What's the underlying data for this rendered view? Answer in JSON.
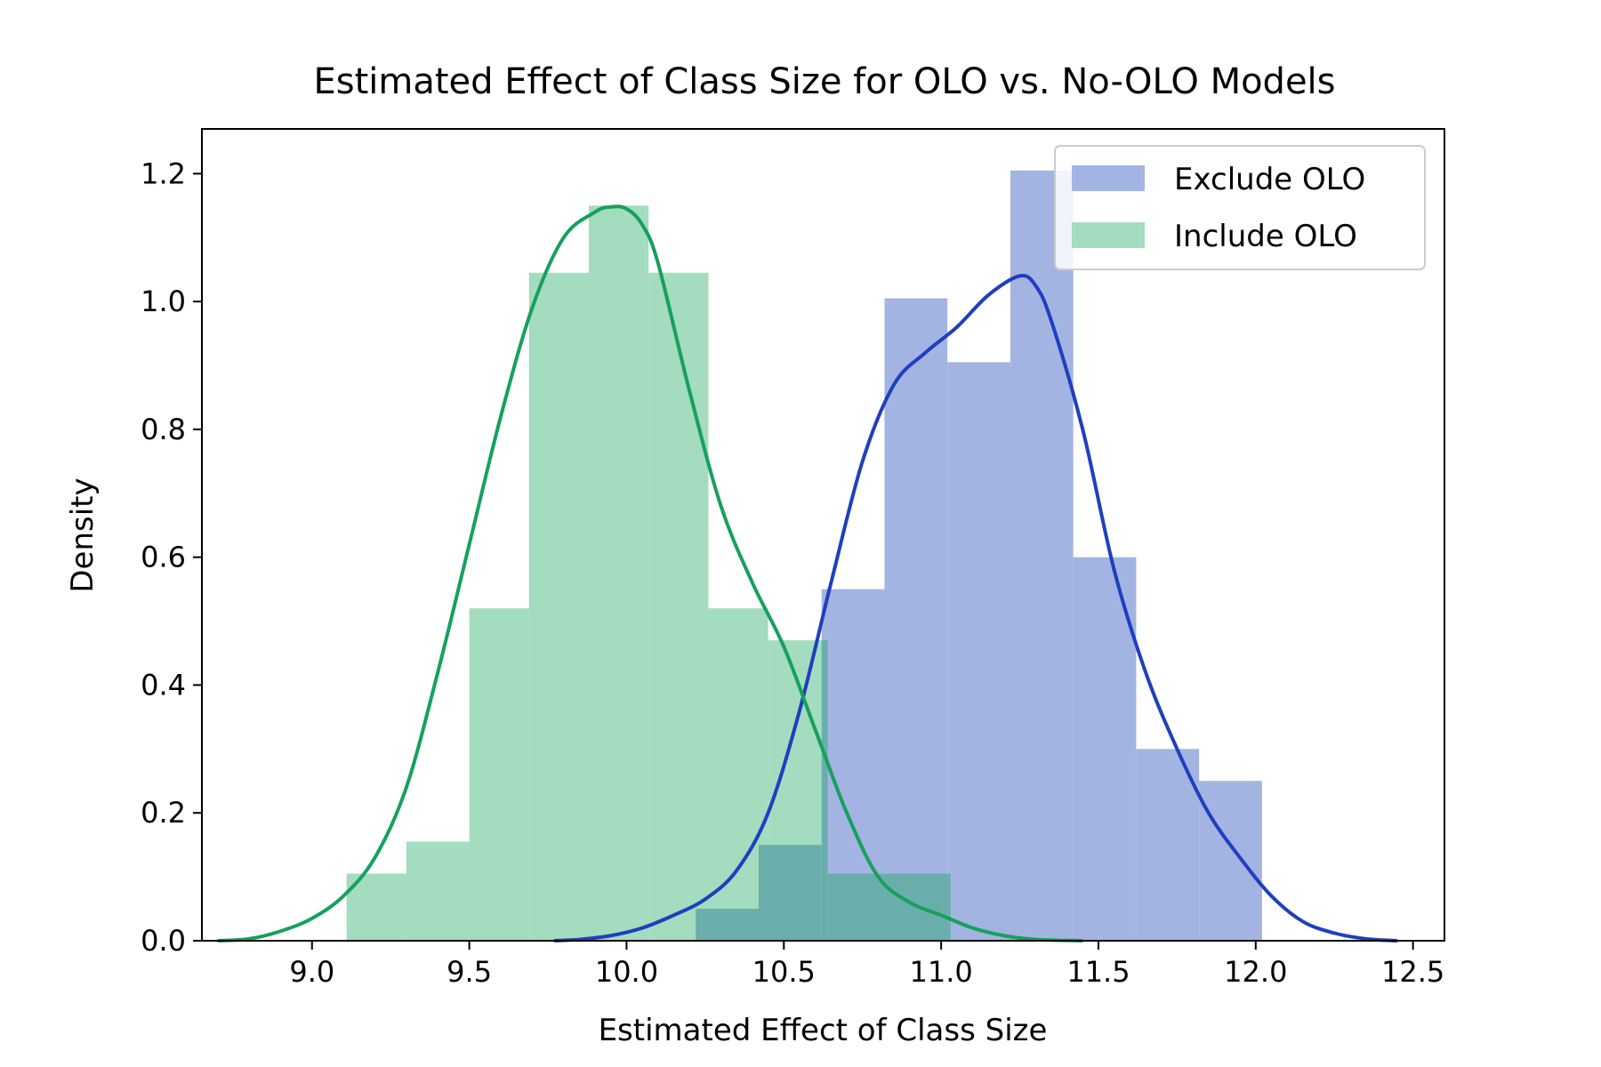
{
  "chart_data": {
    "type": "histogram with density curves",
    "title": "Estimated Effect of Class Size for OLO vs. No-OLO Models",
    "xlabel": "Estimated Effect of Class Size",
    "ylabel": "Density",
    "xlim": [
      8.65,
      12.6
    ],
    "ylim": [
      0,
      1.27
    ],
    "x_ticks": [
      9.0,
      9.5,
      10.0,
      10.5,
      11.0,
      11.5,
      12.0,
      12.5
    ],
    "x_tick_labels": [
      "9.0",
      "9.5",
      "10.0",
      "10.5",
      "11.0",
      "11.5",
      "12.0",
      "12.5"
    ],
    "y_ticks": [
      0.0,
      0.2,
      0.4,
      0.6,
      0.8,
      1.0,
      1.2
    ],
    "y_tick_labels": [
      "0.0",
      "0.2",
      "0.4",
      "0.6",
      "0.8",
      "1.0",
      "1.2"
    ],
    "grid": false,
    "legend_position": "top-right",
    "series": [
      {
        "name": "Exclude OLO",
        "bar_color": "#a3b4e2",
        "line_color": "#1e3fbf",
        "bins": [
          {
            "x0": 10.22,
            "x1": 10.42,
            "value": 0.05
          },
          {
            "x0": 10.42,
            "x1": 10.62,
            "value": 0.15
          },
          {
            "x0": 10.62,
            "x1": 10.82,
            "value": 0.55
          },
          {
            "x0": 10.82,
            "x1": 11.02,
            "value": 1.005
          },
          {
            "x0": 11.02,
            "x1": 11.22,
            "value": 0.905
          },
          {
            "x0": 11.22,
            "x1": 11.42,
            "value": 1.205
          },
          {
            "x0": 11.42,
            "x1": 11.62,
            "value": 0.6
          },
          {
            "x0": 11.62,
            "x1": 11.82,
            "value": 0.3
          },
          {
            "x0": 11.82,
            "x1": 12.02,
            "value": 0.25
          }
        ],
        "curve": {
          "x": [
            9.77,
            9.85,
            9.95,
            10.05,
            10.15,
            10.25,
            10.35,
            10.45,
            10.55,
            10.65,
            10.75,
            10.85,
            10.95,
            11.05,
            11.15,
            11.25,
            11.3,
            11.35,
            11.45,
            11.55,
            11.65,
            11.75,
            11.85,
            11.95,
            12.05,
            12.15,
            12.25,
            12.35,
            12.45
          ],
          "y": [
            0.0,
            0.002,
            0.008,
            0.02,
            0.04,
            0.065,
            0.11,
            0.2,
            0.36,
            0.56,
            0.75,
            0.87,
            0.92,
            0.96,
            1.01,
            1.04,
            1.025,
            0.97,
            0.8,
            0.58,
            0.42,
            0.3,
            0.2,
            0.13,
            0.07,
            0.03,
            0.012,
            0.003,
            0.0
          ]
        }
      },
      {
        "name": "Include OLO",
        "bar_color": "#a3dcbe",
        "line_color": "#17a05d",
        "bins": [
          {
            "x0": 9.11,
            "x1": 9.3,
            "value": 0.105
          },
          {
            "x0": 9.3,
            "x1": 9.5,
            "value": 0.155
          },
          {
            "x0": 9.5,
            "x1": 9.69,
            "value": 0.52
          },
          {
            "x0": 9.69,
            "x1": 9.88,
            "value": 1.045
          },
          {
            "x0": 9.88,
            "x1": 10.07,
            "value": 1.15
          },
          {
            "x0": 10.07,
            "x1": 10.26,
            "value": 1.045
          },
          {
            "x0": 10.26,
            "x1": 10.45,
            "value": 0.52
          },
          {
            "x0": 10.45,
            "x1": 10.64,
            "value": 0.47
          },
          {
            "x0": 10.64,
            "x1": 10.84,
            "value": 0.105
          },
          {
            "x0": 10.84,
            "x1": 11.03,
            "value": 0.105
          }
        ],
        "curve": {
          "x": [
            8.7,
            8.8,
            8.9,
            9.0,
            9.1,
            9.2,
            9.3,
            9.4,
            9.5,
            9.6,
            9.7,
            9.8,
            9.9,
            9.95,
            10.0,
            10.05,
            10.1,
            10.2,
            10.3,
            10.4,
            10.5,
            10.6,
            10.7,
            10.8,
            10.9,
            11.0,
            11.1,
            11.2,
            11.3,
            11.45
          ],
          "y": [
            0.0,
            0.003,
            0.015,
            0.035,
            0.07,
            0.13,
            0.24,
            0.42,
            0.62,
            0.82,
            0.99,
            1.1,
            1.14,
            1.148,
            1.145,
            1.12,
            1.06,
            0.86,
            0.68,
            0.56,
            0.46,
            0.33,
            0.2,
            0.1,
            0.06,
            0.04,
            0.02,
            0.008,
            0.002,
            0.0
          ]
        }
      }
    ],
    "overlap_color": "#6aaeac"
  }
}
